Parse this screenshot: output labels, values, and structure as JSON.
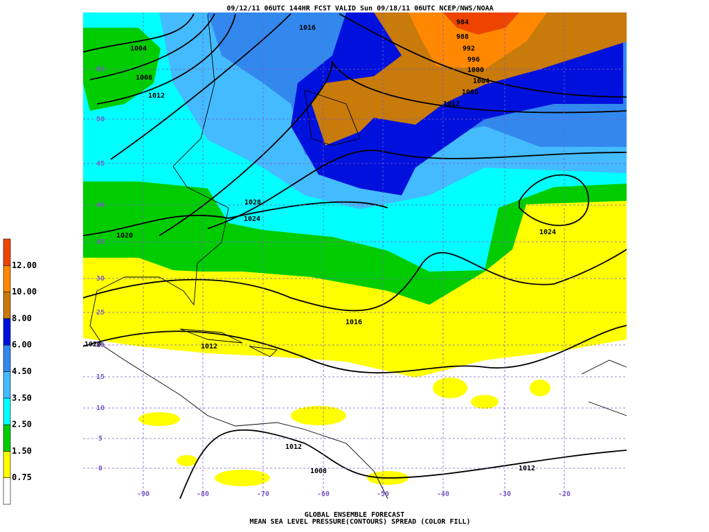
{
  "header": {
    "title": "09/12/11 06UTC  144HR  FCST VALID Sun 09/18/11 06UTC  NCEP/NWS/NOAA"
  },
  "footer": {
    "line1": "GLOBAL ENSEMBLE FORECAST",
    "line2": "MEAN SEA LEVEL PRESSURE(CONTOURS) SPREAD (COLOR FILL)"
  },
  "colorbar": {
    "colors": [
      "#ffffff",
      "#ffff00",
      "#00cc00",
      "#00ffff",
      "#44bbff",
      "#3388ee",
      "#0011dd",
      "#c87a0a",
      "#ff8800",
      "#ee4400"
    ],
    "labels": [
      "0.75",
      "1.50",
      "2.50",
      "3.50",
      "4.50",
      "6.00",
      "8.00",
      "10.00",
      "12.00"
    ]
  },
  "latitudes": [
    55,
    50,
    45,
    40,
    35,
    30,
    25,
    20,
    15,
    10,
    5,
    0
  ],
  "longitudes": [
    -90,
    -80,
    -70,
    -60,
    -50,
    -40,
    -30,
    -20
  ],
  "contour_labels": [
    "984",
    "988",
    "992",
    "996",
    "1000",
    "1004",
    "1008",
    "1012",
    "1016",
    "1004",
    "1008",
    "1012",
    "1028",
    "1024",
    "1020",
    "1024",
    "1016",
    "1012",
    "1020",
    "1012",
    "1008",
    "1012"
  ]
}
